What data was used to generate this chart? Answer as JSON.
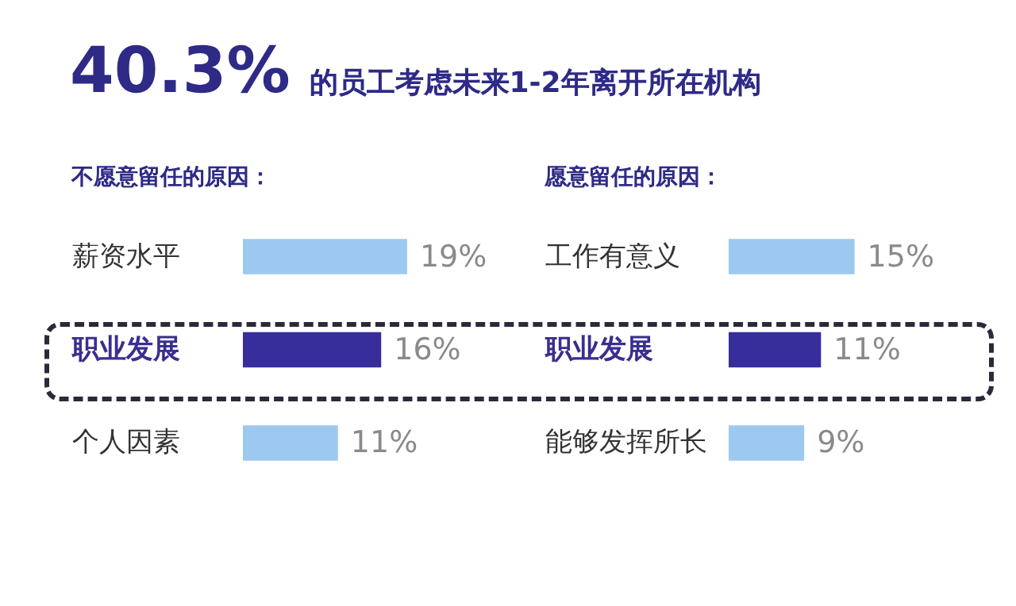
{
  "chart_data": [
    {
      "type": "bar",
      "orientation": "horizontal",
      "title": "40.3% 的员工考虑未来1-2年离开所在机构",
      "subtitle": "不愿意留任的原因：",
      "categories": [
        "薪资水平",
        "职业发展",
        "个人因素"
      ],
      "values": [
        19,
        16,
        11
      ],
      "colors": [
        "#9dc9f0",
        "#372d9b",
        "#9dc9f0"
      ],
      "value_labels": [
        "19%",
        "16%",
        "11%"
      ]
    },
    {
      "type": "bar",
      "orientation": "horizontal",
      "subtitle": "愿意留任的原因：",
      "categories": [
        "工作有意义",
        "职业发展",
        "能够发挥所长"
      ],
      "values": [
        15,
        11,
        9
      ],
      "colors": [
        "#9dc9f0",
        "#372d9b",
        "#9dc9f0"
      ],
      "value_labels": [
        "15%",
        "11%",
        "9%"
      ]
    }
  ]
}
